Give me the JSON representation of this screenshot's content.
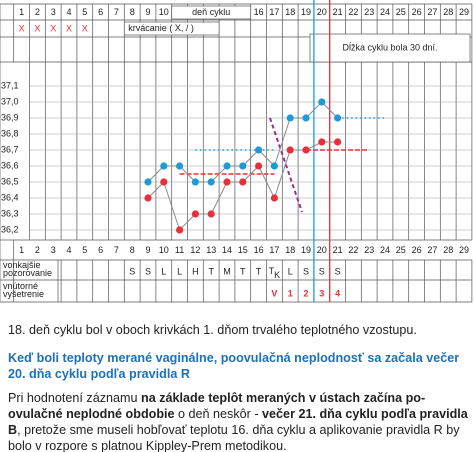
{
  "chart_data": {
    "type": "line",
    "categories": [
      1,
      2,
      3,
      4,
      5,
      6,
      7,
      8,
      9,
      10,
      11,
      12,
      13,
      14,
      15,
      16,
      17,
      18,
      19,
      20,
      21,
      22,
      23,
      24,
      25,
      26,
      27,
      28,
      29
    ],
    "ylim": [
      36.15,
      37.25
    ],
    "yticks": [
      {
        "value": 37.1,
        "label": "37,1"
      },
      {
        "value": 37.0,
        "label": "37,0"
      },
      {
        "value": 36.9,
        "label": "36,9"
      },
      {
        "value": 36.8,
        "label": "36,8"
      },
      {
        "value": 36.7,
        "label": "36,7"
      },
      {
        "value": 36.6,
        "label": "36,6"
      },
      {
        "value": 36.5,
        "label": "36,5"
      },
      {
        "value": 36.4,
        "label": "36,4"
      },
      {
        "value": 36.3,
        "label": "36,3"
      },
      {
        "value": 36.2,
        "label": "36,2"
      }
    ],
    "series": [
      {
        "color": "#1e9bd7",
        "values": [
          null,
          null,
          null,
          null,
          null,
          null,
          null,
          null,
          36.5,
          36.6,
          36.6,
          36.5,
          36.5,
          36.6,
          36.6,
          36.7,
          36.6,
          36.9,
          36.9,
          37.0,
          36.9,
          null,
          null,
          null,
          null,
          null,
          null,
          null,
          null
        ]
      },
      {
        "color": "#e8303a",
        "values": [
          null,
          null,
          null,
          null,
          null,
          null,
          null,
          null,
          36.4,
          36.5,
          36.2,
          36.3,
          36.3,
          36.5,
          36.5,
          36.6,
          36.4,
          36.7,
          36.7,
          36.75,
          36.75,
          null,
          null,
          null,
          null,
          null,
          null,
          null,
          null
        ]
      }
    ],
    "header_label": "deň cyklu",
    "bleeding_label": "krvácanie ( X, / )",
    "bleeding": [
      "X",
      "X",
      "X",
      "X",
      "X",
      null,
      null,
      null,
      null,
      null,
      null,
      null,
      null,
      null,
      null,
      null,
      null,
      null,
      null,
      null,
      null,
      null,
      null,
      null,
      null,
      null,
      null,
      null,
      null
    ],
    "external_label": "vonkajšie pozorovanie",
    "external": [
      null,
      null,
      null,
      null,
      null,
      null,
      null,
      "S",
      "S",
      "L",
      "L",
      "H",
      "T",
      "M",
      "T",
      "T",
      "TK",
      "L",
      "S",
      "S",
      "S",
      null,
      null,
      null,
      null,
      null,
      null,
      null,
      null
    ],
    "internal_label": "vnútorné vyšetrenie",
    "internal": [
      null,
      null,
      null,
      null,
      null,
      null,
      null,
      null,
      null,
      null,
      null,
      null,
      null,
      null,
      null,
      null,
      "V",
      "1",
      "2",
      "3",
      "4",
      null,
      null,
      null,
      null,
      null,
      null,
      null,
      null
    ],
    "annotation": "Dĺžka cyklu bola 30 dní."
  },
  "text": {
    "line1": "18. deň cyklu bol v oboch krivkách 1. dňom trvalého teplotného vzostupu.",
    "heading": "Keď boli teploty merané vaginálne, poovulačná neplodnosť sa začala večer 20. dňa cyklu podľa pravidla R",
    "paragraph": [
      {
        "text": "Pri hodnotení záznamu ",
        "bold": false
      },
      {
        "text": "na základe teplôt meraných v ústach začína po-ovulačné neplodné obdobie",
        "bold": true
      },
      {
        "text": " o deň neskôr - ",
        "bold": false
      },
      {
        "text": "večer 21. dňa cyklu podľa pravidla B",
        "bold": true
      },
      {
        "text": ", pretože sme museli hobľovať teplotu 16. dňa cyklu a aplikovanie pravidla R by bolo v rozpore s platnou Kippley-Prem metodikou.",
        "bold": false
      }
    ]
  }
}
